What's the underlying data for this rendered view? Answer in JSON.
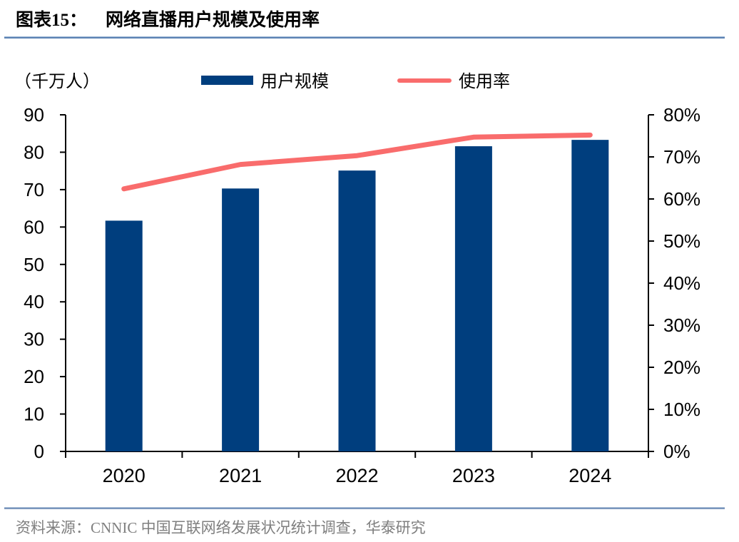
{
  "header": {
    "title_prefix": "图表15：",
    "title": "网络直播用户规模及使用率"
  },
  "unit_label": "（千万人）",
  "legend": {
    "users": {
      "label": "用户规模",
      "color": "#003e7e"
    },
    "rate": {
      "label": "使用率",
      "color": "#f96c6c"
    }
  },
  "footer": {
    "source": "资料来源：CNNIC 中国互联网络发展状况统计调查，华泰研究"
  },
  "colors": {
    "bar": "#003e7e",
    "line": "#f96c6c",
    "axis": "#000000",
    "title_rule": "#5d83b4",
    "footer_rule": "#7b96bd",
    "footer_text": "#7f7f7f"
  },
  "chart_data": {
    "type": "bar",
    "subtype": "bar+line dual-axis",
    "title": "网络直播用户规模及使用率",
    "categories": [
      "2020",
      "2021",
      "2022",
      "2023",
      "2024"
    ],
    "series": [
      {
        "name": "用户规模",
        "type": "bar",
        "axis": "left",
        "unit": "千万人",
        "color": "#003e7e",
        "values": [
          61.7,
          70.3,
          75.1,
          81.6,
          83.3
        ]
      },
      {
        "name": "使用率",
        "type": "line",
        "axis": "right",
        "unit": "%",
        "color": "#f96c6c",
        "values": [
          62.4,
          68.2,
          70.3,
          74.7,
          75.2
        ]
      }
    ],
    "left_axis": {
      "label": "（千万人）",
      "min": 0,
      "max": 90,
      "step": 10,
      "tick_labels": [
        "0",
        "10",
        "20",
        "30",
        "40",
        "50",
        "60",
        "70",
        "80",
        "90"
      ]
    },
    "right_axis": {
      "min": 0,
      "max": 80,
      "step": 10,
      "tick_labels": [
        "0%",
        "10%",
        "20%",
        "30%",
        "40%",
        "50%",
        "60%",
        "70%",
        "80%"
      ]
    },
    "grid": false,
    "legend_position": "top"
  }
}
